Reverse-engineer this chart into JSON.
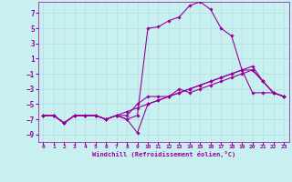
{
  "xlabel": "Windchill (Refroidissement éolien,°C)",
  "bg_color": "#c8f0f0",
  "line_color": "#990099",
  "grid_color": "#b0e0e0",
  "xlim": [
    -0.5,
    23.5
  ],
  "ylim": [
    -10.0,
    8.5
  ],
  "yticks": [
    7,
    5,
    3,
    1,
    -1,
    -3,
    -5,
    -7,
    -9
  ],
  "xticks": [
    0,
    1,
    2,
    3,
    4,
    5,
    6,
    7,
    8,
    9,
    10,
    11,
    12,
    13,
    14,
    15,
    16,
    17,
    18,
    19,
    20,
    21,
    22,
    23
  ],
  "curve1_x": [
    0,
    1,
    2,
    3,
    4,
    5,
    6,
    7,
    8,
    9,
    10,
    11,
    12,
    13,
    14,
    15,
    16,
    17,
    18,
    19,
    20,
    21,
    22,
    23
  ],
  "curve1_y": [
    -6.5,
    -6.5,
    -7.5,
    -6.5,
    -6.5,
    -6.5,
    -7.0,
    -6.5,
    -6.0,
    -5.5,
    -5.0,
    -4.5,
    -4.0,
    -3.5,
    -3.0,
    -2.5,
    -2.0,
    -1.5,
    -1.0,
    -0.5,
    -0.5,
    -2.0,
    -3.5,
    -4.0
  ],
  "curve2_x": [
    0,
    1,
    2,
    3,
    4,
    5,
    6,
    7,
    8,
    9,
    10,
    11,
    12,
    13,
    14,
    15,
    16,
    17,
    18,
    19,
    20,
    21,
    22,
    23
  ],
  "curve2_y": [
    -6.5,
    -6.5,
    -7.5,
    -6.5,
    -6.5,
    -6.5,
    -7.0,
    -6.5,
    -6.5,
    -5.0,
    -4.0,
    -4.0,
    -4.0,
    -3.5,
    -3.0,
    -2.5,
    -2.0,
    -1.5,
    -1.0,
    -0.5,
    0.0,
    -2.0,
    -3.5,
    -4.0
  ],
  "curve3_x": [
    0,
    1,
    2,
    3,
    4,
    5,
    6,
    7,
    8,
    9,
    10,
    11,
    12,
    13,
    14,
    15,
    16,
    17,
    18,
    19,
    20,
    21,
    22,
    23
  ],
  "curve3_y": [
    -6.5,
    -6.5,
    -7.5,
    -6.5,
    -6.5,
    -6.5,
    -7.0,
    -6.5,
    -7.0,
    -8.8,
    -5.0,
    -4.5,
    -4.0,
    -3.0,
    -3.5,
    -3.0,
    -2.5,
    -2.0,
    -1.5,
    -1.0,
    -0.5,
    -2.0,
    -3.5,
    -4.0
  ],
  "curve4_x": [
    0,
    1,
    2,
    3,
    4,
    5,
    6,
    7,
    8,
    9,
    10,
    11,
    12,
    13,
    14,
    15,
    16,
    17,
    18,
    19,
    20,
    21,
    22,
    23
  ],
  "curve4_y": [
    -6.5,
    -6.5,
    -7.5,
    -6.5,
    -6.5,
    -6.5,
    -7.0,
    -6.5,
    -7.0,
    -6.5,
    5.0,
    5.2,
    6.0,
    6.5,
    8.0,
    8.5,
    7.5,
    5.0,
    4.0,
    -0.5,
    -3.5,
    -3.5,
    -3.5,
    -4.0
  ]
}
